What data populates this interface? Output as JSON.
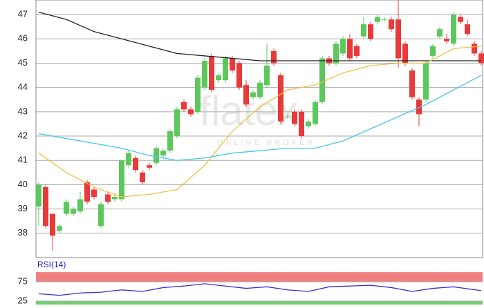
{
  "chart_data": [
    {
      "type": "candlestick",
      "watermark": "flatex",
      "watermark_sub": "ONLINE BROKER",
      "ylim": [
        37.0,
        47.6
      ],
      "yticks": [
        38,
        39,
        40,
        41,
        42,
        43,
        44,
        45,
        46,
        47
      ],
      "xlim": [
        -0.4,
        64.2
      ],
      "grid": true,
      "up_color": "#5cc85c",
      "down_color": "#e8393b",
      "open": [
        39.1,
        39.9,
        38.8,
        38.1,
        38.8,
        38.8,
        38.9,
        40.1,
        39.8,
        38.3,
        39.6,
        39.4,
        39.4,
        40.8,
        41.1,
        40.5,
        40.8,
        40.9,
        41.2,
        41.4,
        42.0,
        43.4,
        43.1,
        43.0,
        44.0,
        45.3,
        44.3,
        44.3,
        45.2,
        45.0,
        44.1,
        43.6,
        43.6,
        44.1,
        45.5,
        44.5,
        42.8,
        43.0,
        43.0,
        42.4,
        42.5,
        43.4,
        45.2,
        45.0,
        45.4,
        46.0,
        45.7,
        46.1,
        46.6,
        46.7,
        46.8,
        46.8,
        46.8,
        45.8,
        44.7,
        43.5,
        43.5,
        45.3,
        46.1,
        46.0,
        45.8,
        46.9,
        46.6,
        45.8,
        45.4
      ],
      "high": [
        40.1,
        40.0,
        38.8,
        38.4,
        39.4,
        39.1,
        39.7,
        40.2,
        39.9,
        39.3,
        39.7,
        39.6,
        41.0,
        41.4,
        41.2,
        40.6,
        40.9,
        41.6,
        41.5,
        42.3,
        43.2,
        43.5,
        43.2,
        44.5,
        45.2,
        45.4,
        44.6,
        45.3,
        45.3,
        45.1,
        44.3,
        43.9,
        44.3,
        45.8,
        45.6,
        44.6,
        42.9,
        43.1,
        43.1,
        42.7,
        43.5,
        45.3,
        45.3,
        45.9,
        46.1,
        46.2,
        45.8,
        46.9,
        46.7,
        47.0,
        46.9,
        46.9,
        47.6,
        45.9,
        44.8,
        43.6,
        45.1,
        45.8,
        46.5,
        46.2,
        47.1,
        47.0,
        46.8,
        45.9,
        45.5
      ],
      "low": [
        38.3,
        38.2,
        37.3,
        38.0,
        38.7,
        38.7,
        38.8,
        39.2,
        39.4,
        38.2,
        39.2,
        39.3,
        39.3,
        40.7,
        40.5,
        40.0,
        40.6,
        40.8,
        41.1,
        41.3,
        41.9,
        43.0,
        42.8,
        42.9,
        43.9,
        43.8,
        44.2,
        44.2,
        44.6,
        43.9,
        43.2,
        43.5,
        43.5,
        44.0,
        44.9,
        42.5,
        42.7,
        42.4,
        41.9,
        42.3,
        42.4,
        43.3,
        44.9,
        44.9,
        45.3,
        45.1,
        45.2,
        46.0,
        45.9,
        46.6,
        46.7,
        46.3,
        44.8,
        44.9,
        43.5,
        42.4,
        43.4,
        45.2,
        46.0,
        45.8,
        45.7,
        46.6,
        46.1,
        45.3,
        44.9
      ],
      "close": [
        40.0,
        38.3,
        37.9,
        38.3,
        39.3,
        39.0,
        39.4,
        39.3,
        39.5,
        39.2,
        39.3,
        39.5,
        41.0,
        41.3,
        40.6,
        40.1,
        40.7,
        41.5,
        41.4,
        42.2,
        43.1,
        43.1,
        42.9,
        44.4,
        45.1,
        43.9,
        44.5,
        45.2,
        44.7,
        44.0,
        43.3,
        43.8,
        44.2,
        44.9,
        45.0,
        42.6,
        42.8,
        42.5,
        42.0,
        42.6,
        43.4,
        45.2,
        45.0,
        45.8,
        46.0,
        45.2,
        45.3,
        46.6,
        46.0,
        46.9,
        46.8,
        46.4,
        45.2,
        45.0,
        43.6,
        42.9,
        45.0,
        45.7,
        46.4,
        45.9,
        47.0,
        46.7,
        46.2,
        45.4,
        45.0
      ],
      "lines": [
        {
          "color": "#222222",
          "x": [
            0,
            4,
            8,
            12,
            16,
            20,
            24,
            28,
            32,
            36,
            40,
            44,
            48,
            52,
            56,
            60,
            64
          ],
          "values": [
            47.1,
            46.8,
            46.3,
            46.0,
            45.7,
            45.4,
            45.3,
            45.2,
            45.1,
            45.1,
            45.1,
            45.1,
            45.1,
            45.1,
            45.1,
            45.1,
            45.1
          ]
        },
        {
          "color": "#f0c040",
          "x": [
            0,
            4,
            8,
            12,
            16,
            20,
            24,
            28,
            32,
            36,
            40,
            44,
            48,
            52,
            56,
            60,
            64
          ],
          "values": [
            41.3,
            40.5,
            39.9,
            39.5,
            39.6,
            39.8,
            40.8,
            42.2,
            43.2,
            43.9,
            44.1,
            44.6,
            44.9,
            45.0,
            45.0,
            45.6,
            45.7
          ]
        },
        {
          "color": "#40c8e8",
          "x": [
            0,
            4,
            8,
            12,
            16,
            20,
            24,
            28,
            32,
            36,
            40,
            44,
            48,
            52,
            56,
            60,
            64
          ],
          "values": [
            42.1,
            41.9,
            41.7,
            41.5,
            41.2,
            41.0,
            41.1,
            41.3,
            41.4,
            41.5,
            41.5,
            41.8,
            42.3,
            42.8,
            43.3,
            43.9,
            44.5
          ]
        }
      ]
    },
    {
      "type": "line",
      "title": "RSI(14)",
      "ylim": [
        16,
        102
      ],
      "yticks": [
        25,
        75
      ],
      "xlim": [
        -0.4,
        64.2
      ],
      "upper_band": [
        75,
        100
      ],
      "lower_band": [
        0,
        25
      ],
      "upper_color": "#f08080",
      "lower_color": "#70d070",
      "color": "#3030d0",
      "x": [
        0,
        3,
        6,
        9,
        12,
        15,
        18,
        21,
        24,
        27,
        30,
        33,
        36,
        39,
        42,
        45,
        48,
        51,
        54,
        57,
        60,
        64
      ],
      "values": [
        44,
        40,
        46,
        48,
        54,
        50,
        60,
        64,
        70,
        64,
        58,
        62,
        54,
        50,
        62,
        64,
        66,
        60,
        50,
        58,
        62,
        52
      ]
    }
  ]
}
